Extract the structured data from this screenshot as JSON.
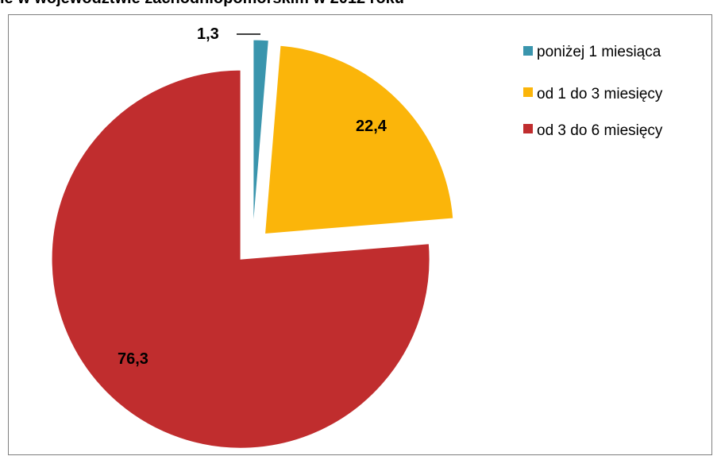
{
  "header": {
    "title_fragment": "ie w województwie zachodniopomorskim w 2012 roku"
  },
  "colors": {
    "teal": "#3a95ad",
    "yellow": "#fbb50a",
    "red": "#c02d2e",
    "frame": "#7f7f7f"
  },
  "chart_data": {
    "type": "pie",
    "start_direction": "12 o'clock, clockwise",
    "exploded_slices": "all",
    "legend_placement": "right",
    "categories": [
      "poniżej 1 miesiąca",
      "od 1 do 3 miesięcy",
      "od 3 do 6 miesięcy"
    ],
    "values": [
      1.3,
      22.4,
      76.3
    ],
    "data_labels": [
      "1,3",
      "22,4",
      "76,3"
    ],
    "colors": [
      "#3a95ad",
      "#fbb50a",
      "#c02d2e"
    ]
  }
}
